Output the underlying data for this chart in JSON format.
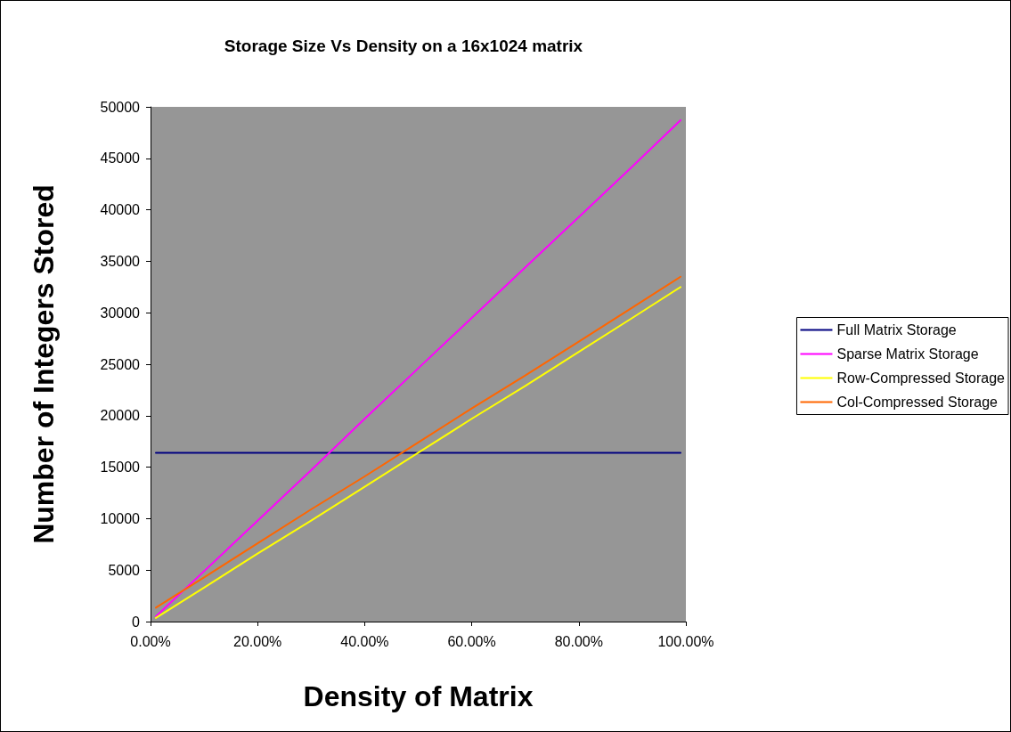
{
  "chart_data": {
    "type": "line",
    "title": "Storage Size Vs Density on a 16x1024 matrix",
    "xlabel": "Density of Matrix",
    "ylabel": "Number of Integers Stored",
    "x": [
      1,
      10,
      20,
      30,
      40,
      50,
      60,
      70,
      80,
      90,
      99
    ],
    "series": [
      {
        "name": "Full Matrix Storage",
        "color": "#000080",
        "values": [
          16400,
          16400,
          16400,
          16400,
          16400,
          16400,
          16400,
          16400,
          16400,
          16400,
          16400
        ]
      },
      {
        "name": "Sparse Matrix Storage",
        "color": "#ff00ff",
        "values": [
          490,
          4900,
          9800,
          14700,
          19700,
          24600,
          29500,
          34400,
          39300,
          44200,
          48700
        ]
      },
      {
        "name": "Row-Compressed Storage",
        "color": "#ffff00",
        "values": [
          350,
          3300,
          6600,
          9800,
          13100,
          16400,
          19700,
          22900,
          26200,
          29500,
          32500
        ]
      },
      {
        "name": "Col-Compressed Storage",
        "color": "#ff6600",
        "values": [
          1350,
          4300,
          7600,
          10900,
          14100,
          17400,
          20700,
          23900,
          27200,
          30500,
          33500
        ]
      }
    ],
    "xlim": [
      0,
      100
    ],
    "xticks": [
      {
        "value": 0,
        "label": "0.00%"
      },
      {
        "value": 20,
        "label": "20.00%"
      },
      {
        "value": 40,
        "label": "40.00%"
      },
      {
        "value": 60,
        "label": "60.00%"
      },
      {
        "value": 80,
        "label": "80.00%"
      },
      {
        "value": 100,
        "label": "100.00%"
      }
    ],
    "ylim": [
      0,
      50000
    ],
    "yticks": [
      0,
      5000,
      10000,
      15000,
      20000,
      25000,
      30000,
      35000,
      40000,
      45000,
      50000
    ],
    "grid": false,
    "legend": "right",
    "marker": "none",
    "line_style": "solid"
  }
}
